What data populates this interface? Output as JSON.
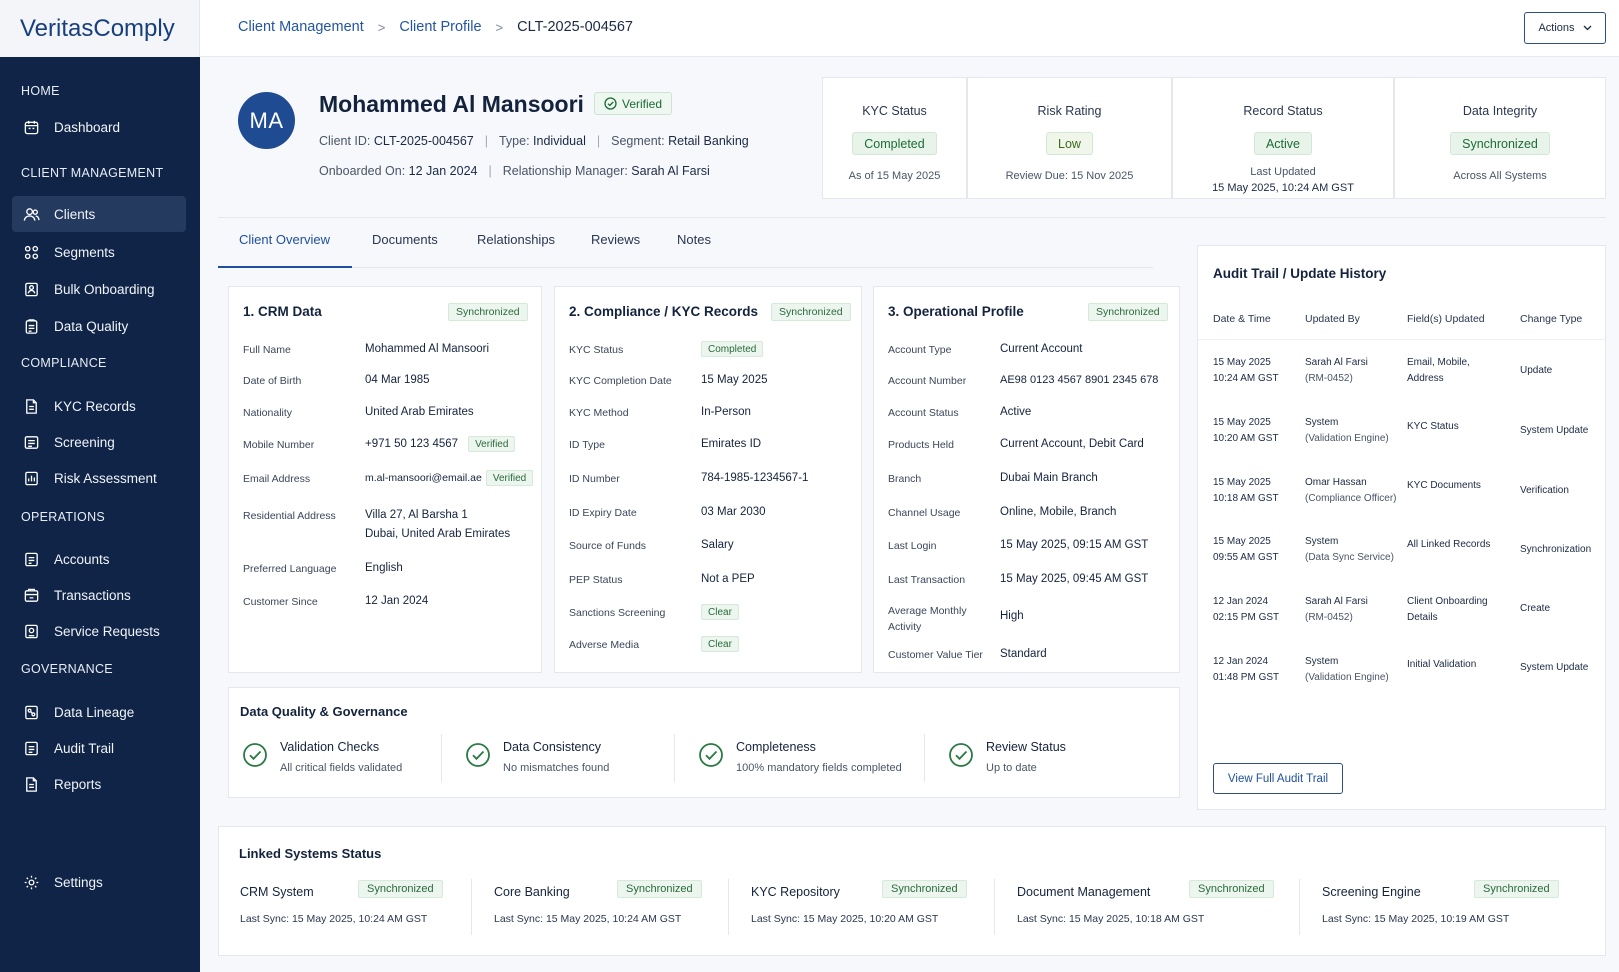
{
  "app": {
    "brand": "VeritasComply"
  },
  "sidebar": {
    "sections": [
      {
        "label": "HOME",
        "items": [
          {
            "label": "Dashboard",
            "icon": "calendar-icon"
          }
        ]
      },
      {
        "label": "CLIENT MANAGEMENT",
        "items": [
          {
            "label": "Clients",
            "icon": "users-icon",
            "active": true
          },
          {
            "label": "Segments",
            "icon": "segments-icon"
          },
          {
            "label": "Bulk Onboarding",
            "icon": "bulk-icon"
          },
          {
            "label": "Data Quality",
            "icon": "clipboard-icon"
          }
        ]
      },
      {
        "label": "COMPLIANCE",
        "items": [
          {
            "label": "KYC Records",
            "icon": "document-icon"
          },
          {
            "label": "Screening",
            "icon": "screen-icon"
          },
          {
            "label": "Risk Assessment",
            "icon": "risk-icon"
          }
        ]
      },
      {
        "label": "OPERATIONS",
        "items": [
          {
            "label": "Accounts",
            "icon": "account-icon"
          },
          {
            "label": "Transactions",
            "icon": "transactions-icon"
          },
          {
            "label": "Service Requests",
            "icon": "service-icon"
          }
        ]
      },
      {
        "label": "GOVERNANCE",
        "items": [
          {
            "label": "Data Lineage",
            "icon": "lineage-icon"
          },
          {
            "label": "Audit Trail",
            "icon": "audit-icon"
          },
          {
            "label": "Reports",
            "icon": "reports-icon"
          }
        ]
      }
    ],
    "settings": "Settings"
  },
  "breadcrumb": {
    "items": [
      "Client Management",
      "Client Profile"
    ],
    "current": "CLT-2025-004567",
    "sep": ">"
  },
  "header": {
    "actions": "Actions"
  },
  "client": {
    "initials": "MA",
    "name": "Mohammed Al Mansoori",
    "verified": "Verified",
    "client_id_label": "Client ID:",
    "client_id": "CLT-2025-004567",
    "type_label": "Type:",
    "type": "Individual",
    "segment_label": "Segment:",
    "segment": "Retail Banking",
    "onboarded_label": "Onboarded On:",
    "onboarded": "12 Jan 2024",
    "rm_label": "Relationship Manager:",
    "rm": "Sarah Al Farsi",
    "sep": "|"
  },
  "status_cards": [
    {
      "title": "KYC Status",
      "value": "Completed",
      "sub1": "As of 15 May 2025",
      "sub2": ""
    },
    {
      "title": "Risk Rating",
      "value": "Low",
      "sub1": "Review Due: 15 Nov 2025",
      "sub2": ""
    },
    {
      "title": "Record Status",
      "value": "Active",
      "sub1": "Last Updated",
      "sub2": "15 May 2025, 10:24 AM GST"
    },
    {
      "title": "Data Integrity",
      "value": "Synchronized",
      "sub1": "Across All Systems",
      "sub2": ""
    }
  ],
  "tabs": [
    "Client Overview",
    "Documents",
    "Relationships",
    "Reviews",
    "Notes"
  ],
  "crm": {
    "title": "1. CRM Data",
    "badge": "Synchronized",
    "rows": [
      {
        "label": "Full Name",
        "value": "Mohammed Al Mansoori"
      },
      {
        "label": "Date of Birth",
        "value": "04 Mar 1985"
      },
      {
        "label": "Nationality",
        "value": "United Arab Emirates"
      },
      {
        "label": "Mobile Number",
        "value": "+971 50 123 4567",
        "badge": "Verified"
      },
      {
        "label": "Email Address",
        "value": "m.al-mansoori@email.ae",
        "badge": "Verified"
      },
      {
        "label": "Residential Address",
        "value": "Villa 27, Al Barsha 1",
        "value2": "Dubai, United Arab Emirates"
      },
      {
        "label": "Preferred Language",
        "value": "English"
      },
      {
        "label": "Customer Since",
        "value": "12 Jan 2024"
      }
    ]
  },
  "kyc": {
    "title": "2. Compliance / KYC Records",
    "badge": "Synchronized",
    "rows": [
      {
        "label": "KYC Status",
        "pill": "Completed"
      },
      {
        "label": "KYC Completion Date",
        "value": "15 May 2025"
      },
      {
        "label": "KYC Method",
        "value": "In-Person"
      },
      {
        "label": "ID Type",
        "value": "Emirates ID"
      },
      {
        "label": "ID Number",
        "value": "784-1985-1234567-1"
      },
      {
        "label": "ID Expiry Date",
        "value": "03 Mar 2030"
      },
      {
        "label": "Source of Funds",
        "value": "Salary"
      },
      {
        "label": "PEP Status",
        "value": "Not a PEP"
      },
      {
        "label": "Sanctions Screening",
        "pill": "Clear"
      },
      {
        "label": "Adverse Media",
        "pill": "Clear"
      }
    ]
  },
  "ops": {
    "title": "3. Operational Profile",
    "badge": "Synchronized",
    "rows": [
      {
        "label": "Account Type",
        "value": "Current Account"
      },
      {
        "label": "Account Number",
        "value": "AE98 0123 4567 8901 2345 678"
      },
      {
        "label": "Account Status",
        "value": "Active"
      },
      {
        "label": "Products Held",
        "value": "Current Account, Debit Card"
      },
      {
        "label": "Branch",
        "value": "Dubai Main Branch"
      },
      {
        "label": "Channel Usage",
        "value": "Online, Mobile, Branch"
      },
      {
        "label": "Last Login",
        "value": "15 May 2025, 09:15 AM GST"
      },
      {
        "label": "Last Transaction",
        "value": "15 May 2025, 09:45 AM GST"
      },
      {
        "label": "Average Monthly",
        "label2": "Activity",
        "value": "High"
      },
      {
        "label": "Customer Value Tier",
        "value": "Standard"
      }
    ]
  },
  "data_quality": {
    "title": "Data Quality & Governance",
    "items": [
      {
        "title": "Validation Checks",
        "sub": "All critical fields validated"
      },
      {
        "title": "Data Consistency",
        "sub": "No mismatches found"
      },
      {
        "title": "Completeness",
        "sub": "100% mandatory fields completed"
      },
      {
        "title": "Review Status",
        "sub": "Up to date"
      }
    ]
  },
  "audit": {
    "title": "Audit Trail / Update History",
    "headers": [
      "Date & Time",
      "Updated By",
      "Field(s) Updated",
      "Change Type"
    ],
    "rows": [
      {
        "date": "15 May 2025",
        "time": "10:24 AM GST",
        "by": "Sarah Al Farsi",
        "by2": "(RM-0452)",
        "fields": "Email, Mobile,",
        "fields2": "Address",
        "type": "Update"
      },
      {
        "date": "15 May 2025",
        "time": "10:20 AM GST",
        "by": "System",
        "by2": "(Validation Engine)",
        "fields": "KYC Status",
        "fields2": "",
        "type": "System Update"
      },
      {
        "date": "15 May 2025",
        "time": "10:18 AM GST",
        "by": "Omar Hassan",
        "by2": "(Compliance Officer)",
        "fields": "KYC Documents",
        "fields2": "",
        "type": "Verification"
      },
      {
        "date": "15 May 2025",
        "time": "09:55 AM GST",
        "by": "System",
        "by2": "(Data Sync Service)",
        "fields": "All Linked Records",
        "fields2": "",
        "type": "Synchronization"
      },
      {
        "date": "12 Jan 2024",
        "time": "02:15 PM GST",
        "by": "Sarah Al Farsi",
        "by2": "(RM-0452)",
        "fields": "Client Onboarding",
        "fields2": "Details",
        "type": "Create"
      },
      {
        "date": "12 Jan 2024",
        "time": "01:48 PM GST",
        "by": "System",
        "by2": "(Validation Engine)",
        "fields": "Initial Validation",
        "fields2": "",
        "type": "System Update"
      }
    ],
    "button": "View Full Audit Trail"
  },
  "linked": {
    "title": "Linked Systems Status",
    "items": [
      {
        "name": "CRM System",
        "status": "Synchronized",
        "sync": "Last Sync: 15 May 2025, 10:24 AM GST"
      },
      {
        "name": "Core Banking",
        "status": "Synchronized",
        "sync": "Last Sync: 15 May 2025, 10:24 AM GST"
      },
      {
        "name": "KYC Repository",
        "status": "Synchronized",
        "sync": "Last Sync: 15 May 2025, 10:20 AM GST"
      },
      {
        "name": "Document Management",
        "status": "Synchronized",
        "sync": "Last Sync: 15 May 2025, 10:18 AM GST"
      },
      {
        "name": "Screening Engine",
        "status": "Synchronized",
        "sync": "Last Sync: 15 May 2025, 10:19 AM GST"
      }
    ]
  }
}
